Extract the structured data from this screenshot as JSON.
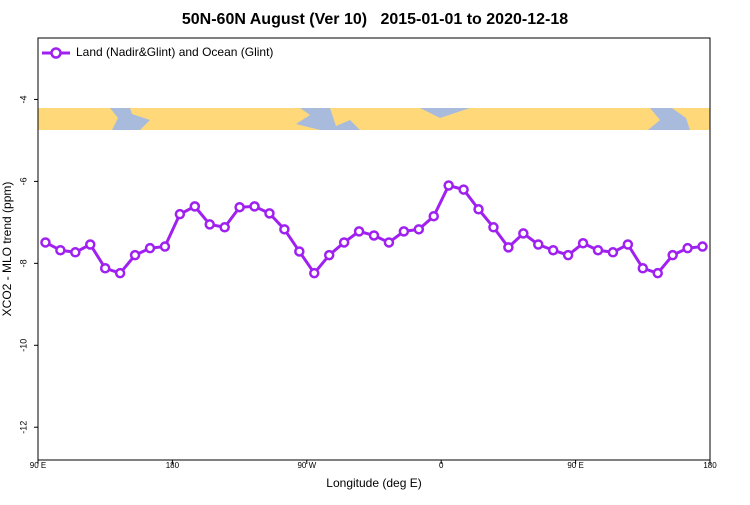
{
  "chart_data": {
    "type": "line",
    "title": "50N-60N August (Ver 10)   2015-01-01 to 2020-12-18",
    "xlabel": "Longitude (deg E)",
    "ylabel": "XCO2 - MLO trend (ppm)",
    "x": [
      95,
      105,
      115,
      125,
      135,
      145,
      155,
      165,
      175,
      185,
      195,
      205,
      215,
      225,
      235,
      245,
      255,
      265,
      275,
      285,
      295,
      305,
      315,
      325,
      335,
      345,
      355,
      365,
      375,
      385,
      395,
      405,
      415,
      425,
      435,
      445,
      455,
      465,
      475,
      485,
      495,
      505,
      515,
      525,
      535
    ],
    "series": [
      {
        "name": "Land (Nadir&Glint) and Ocean (Glint)",
        "color": "#a020f0",
        "values": [
          -7.49,
          -7.68,
          -7.73,
          -7.54,
          -8.12,
          -8.24,
          -7.8,
          -7.63,
          -7.59,
          -6.8,
          -6.61,
          -7.05,
          -7.12,
          -6.63,
          -6.61,
          -6.78,
          -7.17,
          -7.71,
          -8.24,
          -7.8,
          -7.49,
          -7.22,
          -7.32,
          -7.49,
          -7.22,
          -7.17,
          -6.85,
          -6.1,
          -6.2,
          -6.68,
          -7.12,
          -7.61,
          -7.27,
          -7.54,
          -7.68,
          -7.8,
          -7.51,
          -7.68,
          -7.73,
          -7.54,
          -8.12,
          -8.24,
          -7.8,
          -7.63,
          -7.59
        ]
      }
    ],
    "xlim": [
      90,
      540
    ],
    "xticks": [
      {
        "value": 90,
        "label": "90 E"
      },
      180,
      {
        "value": 270,
        "label": "90 W"
      },
      {
        "value": 360,
        "label": "0"
      },
      {
        "value": 450,
        "label": "90 E"
      },
      {
        "value": 540,
        "label": "180"
      }
    ],
    "ylim": [
      -12.8,
      -2.5
    ],
    "yticks": [
      -12,
      -10,
      -8,
      -6,
      -4
    ],
    "legend": "top-left",
    "grid": false
  }
}
